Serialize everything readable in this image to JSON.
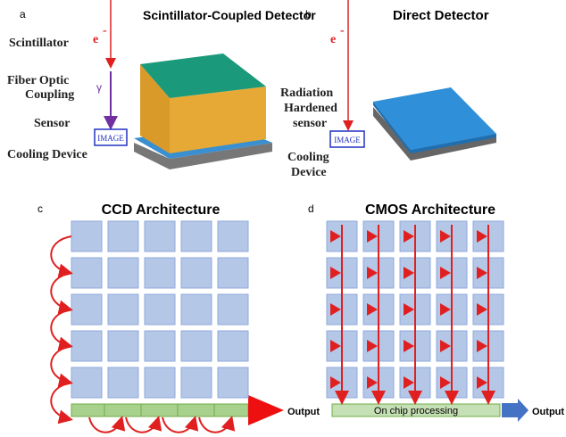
{
  "panel_a": {
    "letter": "a",
    "title": "Scintillator-Coupled Detector",
    "electron": {
      "base": "e",
      "sup": "-"
    },
    "gamma": "γ",
    "image": "IMAGE",
    "labels": {
      "scintillator": "Scintillator",
      "fiber_optic": [
        "Fiber Optic",
        "Coupling"
      ],
      "sensor": "Sensor",
      "cooling": "Cooling Device"
    }
  },
  "panel_b": {
    "letter": "b",
    "title": "Direct Detector",
    "electron": {
      "base": "e",
      "sup": "-"
    },
    "image": "IMAGE",
    "labels": {
      "sensor": [
        "Radiation",
        "Hardened",
        "sensor"
      ],
      "cooling": [
        "Cooling",
        "Device"
      ]
    }
  },
  "panel_c": {
    "letter": "c",
    "title": "CCD Architecture",
    "output": "Output"
  },
  "panel_d": {
    "letter": "d",
    "title": "CMOS Architecture",
    "processing": "On chip processing",
    "output": "Output"
  }
}
